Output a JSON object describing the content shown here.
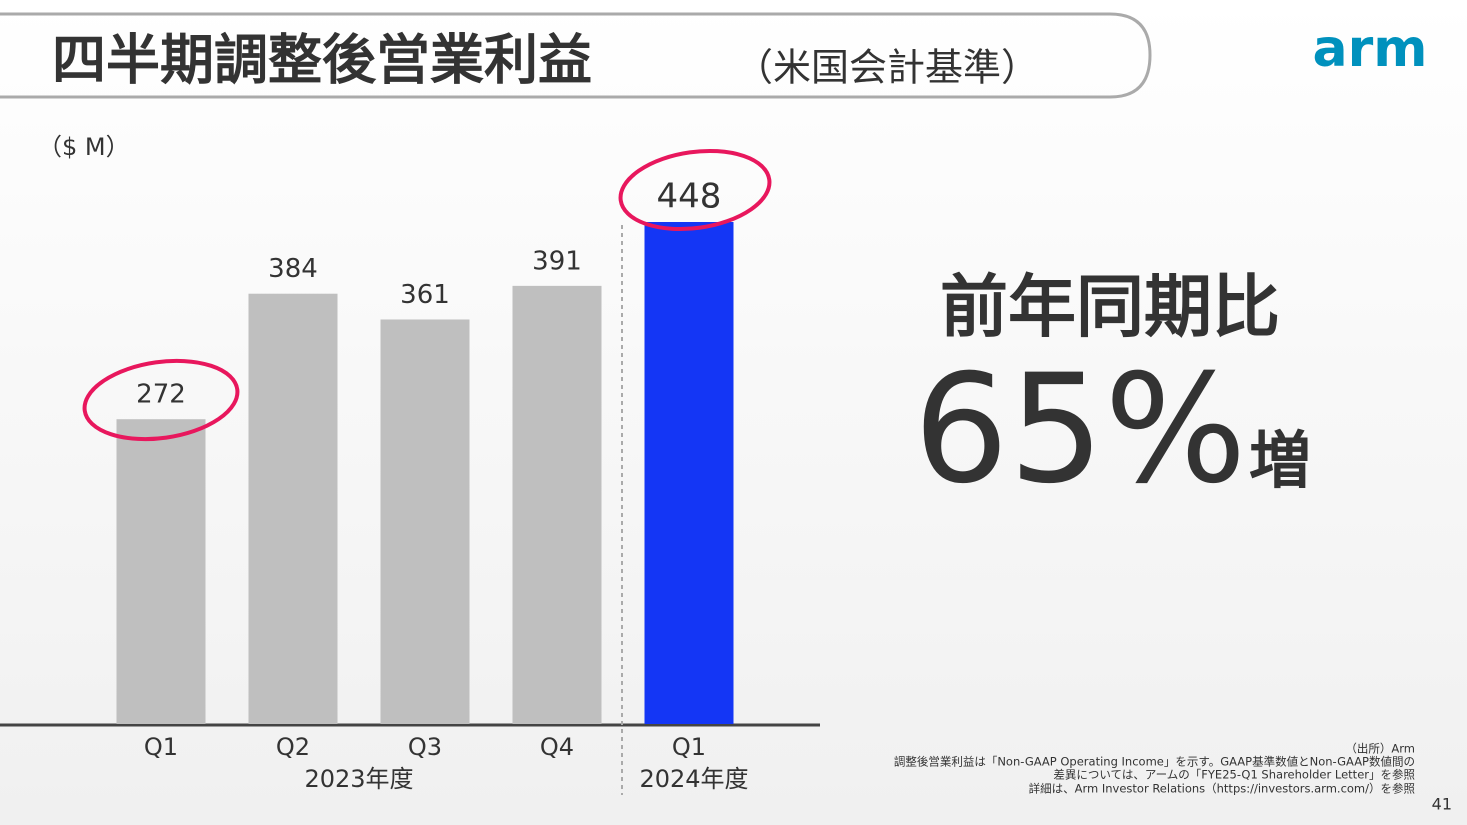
{
  "title": "四半期調整後営業利益",
  "subtitle": "（米国会計基準）",
  "logo": "arm",
  "chart_data": {
    "type": "bar",
    "unit": "（$ M）",
    "categories": [
      "Q1",
      "Q2",
      "Q3",
      "Q4",
      "Q1"
    ],
    "values": [
      272,
      384,
      361,
      391,
      448
    ],
    "colors": [
      "#bfbfbf",
      "#bfbfbf",
      "#bfbfbf",
      "#bfbfbf",
      "#1436f5"
    ],
    "group_labels": [
      "2023年度",
      "2024年度"
    ]
  },
  "headline": {
    "label": "前年同期比",
    "value": "65%",
    "suffix": "増"
  },
  "footnotes": [
    "（出所）Arm",
    "調整後営業利益は「Non-GAAP Operating Income」を示す。GAAP基準数値とNon-GAAP数値間の",
    "差異については、アームの「FYE25-Q1 Shareholder Letter」を参照",
    "詳細は、Arm Investor Relations（https://investors.arm.com/）を参照"
  ],
  "page_number": "41"
}
